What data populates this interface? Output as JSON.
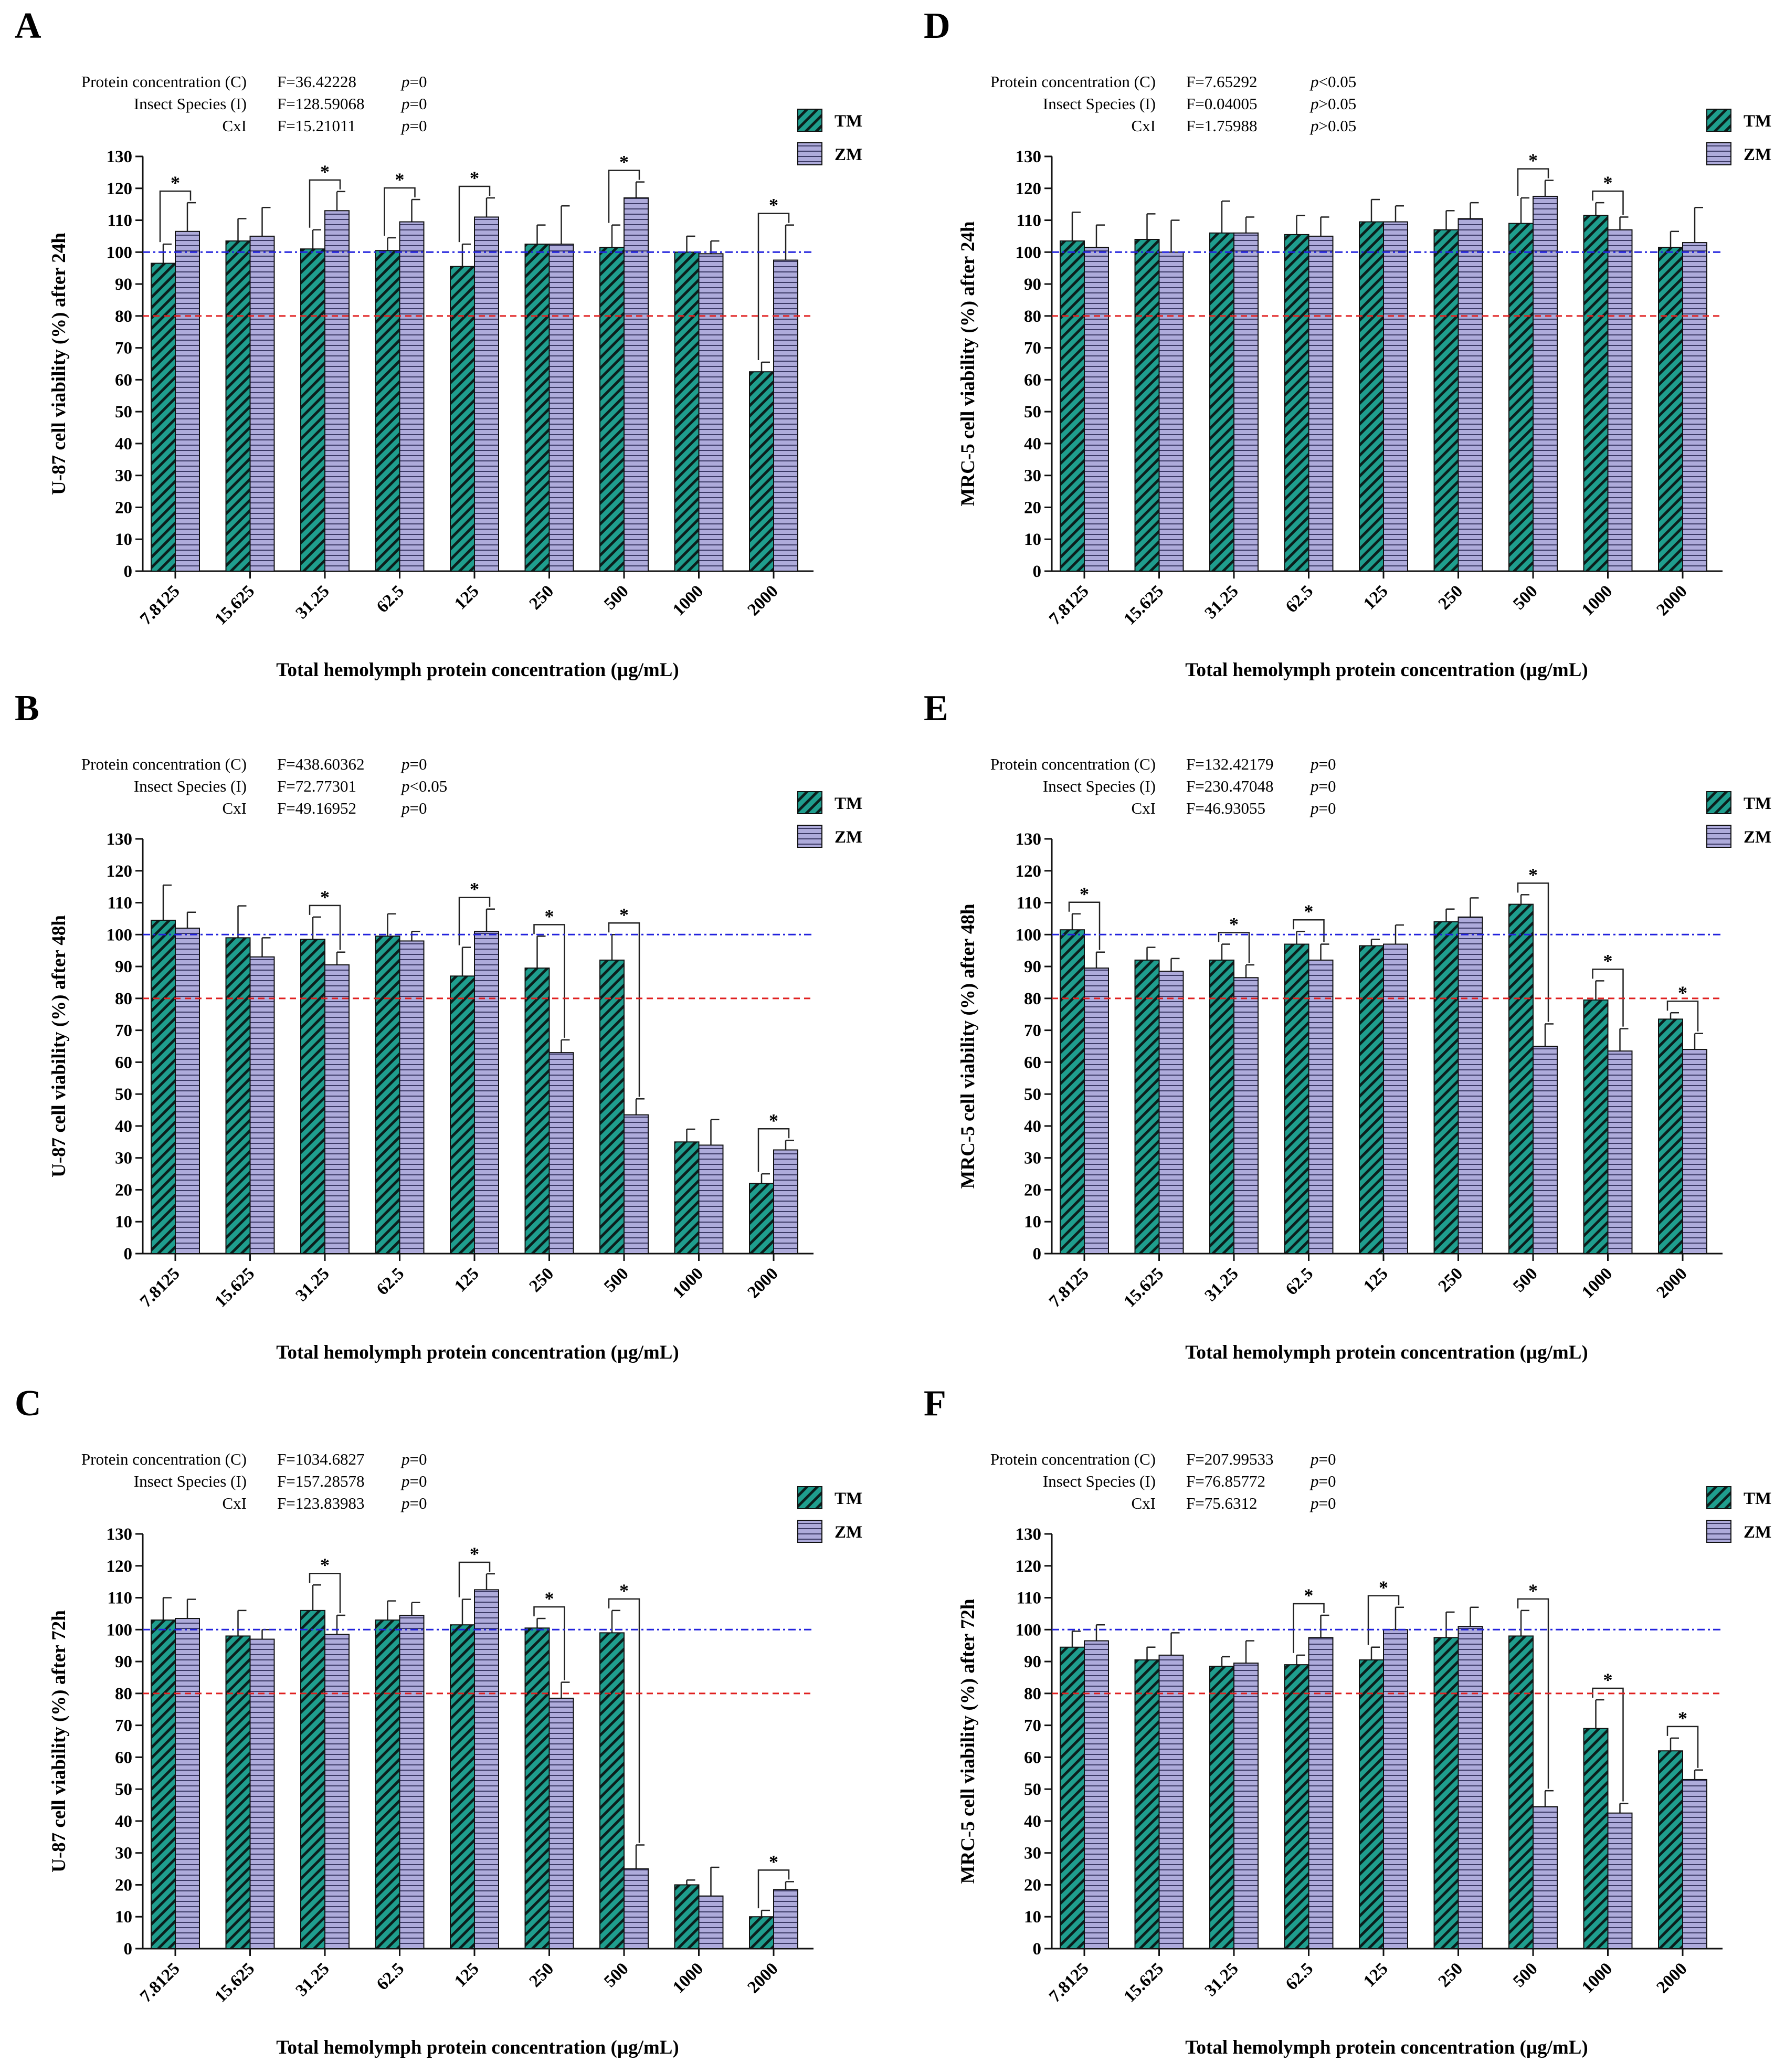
{
  "chart_data": [
    {
      "panel": "A",
      "type": "bar",
      "ylabel": "U-87 cell viability (%) after 24h",
      "xlabel": "Total hemolymph protein concentration (µg/mL)",
      "ylim": [
        0,
        130
      ],
      "yticks": [
        "0",
        "10",
        "20",
        "30",
        "40",
        "50",
        "60",
        "70",
        "80",
        "90",
        "100",
        "110",
        "120",
        "130"
      ],
      "categories": [
        "7.8125",
        "15.625",
        "31.25",
        "62.5",
        "125",
        "250",
        "500",
        "1000",
        "2000"
      ],
      "series": [
        {
          "name": "TM",
          "values": [
            96.5,
            103.5,
            101,
            100.5,
            95.5,
            102.5,
            101.5,
            100,
            62.5
          ],
          "errors": [
            6,
            7,
            6,
            4,
            7,
            6,
            7,
            5,
            3
          ]
        },
        {
          "name": "ZM",
          "values": [
            106.5,
            105,
            113,
            109.5,
            111,
            102.5,
            117,
            99.5,
            97.5
          ],
          "errors": [
            9,
            9,
            6,
            7,
            6,
            12,
            5,
            4,
            11
          ]
        }
      ],
      "significant": [
        0,
        2,
        3,
        4,
        6,
        8
      ],
      "ref_lines": [
        {
          "value": 100,
          "style": "dashdot",
          "color": "#2222dd"
        },
        {
          "value": 80,
          "style": "dash",
          "color": "#e02020"
        }
      ],
      "stats": [
        {
          "label": "Protein concentration (C)",
          "f": "F=36.42228",
          "p": "=0"
        },
        {
          "label": "Insect Species (I)",
          "f": "F=128.59068",
          "p": "=0"
        },
        {
          "label": "CxI",
          "f": "F=15.21011",
          "p": "=0"
        }
      ]
    },
    {
      "panel": "B",
      "type": "bar",
      "ylabel": "U-87 cell viability (%) after 48h",
      "xlabel": "Total hemolymph protein concentration (µg/mL)",
      "ylim": [
        0,
        130
      ],
      "yticks": [
        "0",
        "10",
        "20",
        "30",
        "40",
        "50",
        "60",
        "70",
        "80",
        "90",
        "100",
        "110",
        "120",
        "130"
      ],
      "categories": [
        "7.8125",
        "15.625",
        "31.25",
        "62.5",
        "125",
        "250",
        "500",
        "1000",
        "2000"
      ],
      "series": [
        {
          "name": "TM",
          "values": [
            104.5,
            99,
            98.5,
            99.5,
            87,
            89.5,
            92,
            35,
            22
          ],
          "errors": [
            11,
            10,
            7,
            7,
            9,
            10,
            8,
            4,
            3
          ]
        },
        {
          "name": "ZM",
          "values": [
            102,
            93,
            90.5,
            98,
            101,
            63,
            43.5,
            34,
            32.5
          ],
          "errors": [
            5,
            6,
            4,
            3,
            7,
            4,
            5,
            8,
            3
          ]
        }
      ],
      "significant": [
        2,
        4,
        5,
        6,
        8
      ],
      "ref_lines": [
        {
          "value": 100,
          "style": "dashdot",
          "color": "#2222dd"
        },
        {
          "value": 80,
          "style": "dash",
          "color": "#e02020"
        }
      ],
      "stats": [
        {
          "label": "Protein concentration (C)",
          "f": "F=438.60362",
          "p": "=0"
        },
        {
          "label": "Insect Species (I)",
          "f": "F=72.77301",
          "p": "<0.05"
        },
        {
          "label": "CxI",
          "f": "F=49.16952",
          "p": "=0"
        }
      ]
    },
    {
      "panel": "C",
      "type": "bar",
      "ylabel": "U-87 cell viability (%) after 72h",
      "xlabel": "Total hemolymph protein concentration (µg/mL)",
      "ylim": [
        0,
        130
      ],
      "yticks": [
        "0",
        "10",
        "20",
        "30",
        "40",
        "50",
        "60",
        "70",
        "80",
        "90",
        "100",
        "110",
        "120",
        "130"
      ],
      "categories": [
        "7.8125",
        "15.625",
        "31.25",
        "62.5",
        "125",
        "250",
        "500",
        "1000",
        "2000"
      ],
      "series": [
        {
          "name": "TM",
          "values": [
            103,
            98,
            106,
            103,
            101.5,
            100.5,
            99,
            20,
            10
          ],
          "errors": [
            7,
            8,
            8,
            6,
            8,
            3,
            7,
            1.5,
            2
          ]
        },
        {
          "name": "ZM",
          "values": [
            103.5,
            97,
            98.5,
            104.5,
            112.5,
            78.5,
            25,
            16.5,
            18.5
          ],
          "errors": [
            6,
            3,
            6,
            4,
            5,
            5,
            7.5,
            9,
            2.5
          ]
        }
      ],
      "significant": [
        2,
        4,
        5,
        6,
        8
      ],
      "ref_lines": [
        {
          "value": 100,
          "style": "dashdot",
          "color": "#2222dd"
        },
        {
          "value": 80,
          "style": "dash",
          "color": "#e02020"
        }
      ],
      "stats": [
        {
          "label": "Protein concentration (C)",
          "f": "F=1034.6827",
          "p": "=0"
        },
        {
          "label": "Insect Species (I)",
          "f": "F=157.28578",
          "p": "=0"
        },
        {
          "label": "CxI",
          "f": "F=123.83983",
          "p": "=0"
        }
      ]
    },
    {
      "panel": "D",
      "type": "bar",
      "ylabel": "MRC-5 cell viability (%) after 24h",
      "xlabel": "Total hemolymph protein concentration (µg/mL)",
      "ylim": [
        0,
        130
      ],
      "yticks": [
        "0",
        "10",
        "20",
        "30",
        "40",
        "50",
        "60",
        "70",
        "80",
        "90",
        "100",
        "110",
        "120",
        "130"
      ],
      "categories": [
        "7.8125",
        "15.625",
        "31.25",
        "62.5",
        "125",
        "250",
        "500",
        "1000",
        "2000"
      ],
      "series": [
        {
          "name": "TM",
          "values": [
            103.5,
            104,
            106,
            105.5,
            109.5,
            107,
            109,
            111.5,
            101.5
          ],
          "errors": [
            9,
            8,
            10,
            6,
            7,
            6,
            8,
            4,
            5
          ]
        },
        {
          "name": "ZM",
          "values": [
            101.5,
            100,
            106,
            105,
            109.5,
            110.5,
            117.5,
            107,
            103
          ],
          "errors": [
            7,
            10,
            5,
            6,
            5,
            5,
            5,
            4,
            11
          ]
        }
      ],
      "significant": [
        6,
        7
      ],
      "ref_lines": [
        {
          "value": 100,
          "style": "dashdot",
          "color": "#2222dd"
        },
        {
          "value": 80,
          "style": "dash",
          "color": "#e02020"
        }
      ],
      "stats": [
        {
          "label": "Protein concentration (C)",
          "f": "F=7.65292",
          "p": "<0.05"
        },
        {
          "label": "Insect Species (I)",
          "f": "F=0.04005",
          "p": ">0.05"
        },
        {
          "label": "CxI",
          "f": "F=1.75988",
          "p": ">0.05"
        }
      ]
    },
    {
      "panel": "E",
      "type": "bar",
      "ylabel": "MRC-5 cell viability (%) after 48h",
      "xlabel": "Total hemolymph protein concentration (µg/mL)",
      "ylim": [
        0,
        130
      ],
      "yticks": [
        "0",
        "10",
        "20",
        "30",
        "40",
        "50",
        "60",
        "70",
        "80",
        "90",
        "100",
        "110",
        "120",
        "130"
      ],
      "categories": [
        "7.8125",
        "15.625",
        "31.25",
        "62.5",
        "125",
        "250",
        "500",
        "1000",
        "2000"
      ],
      "series": [
        {
          "name": "TM",
          "values": [
            101.5,
            92,
            92,
            97,
            96.5,
            104,
            109.5,
            79.5,
            73.5
          ],
          "errors": [
            5,
            4,
            5,
            4,
            2,
            4,
            3,
            6,
            2
          ]
        },
        {
          "name": "ZM",
          "values": [
            89.5,
            88.5,
            86.5,
            92,
            97,
            105.5,
            65,
            63.5,
            64
          ],
          "errors": [
            5,
            4,
            4,
            5,
            6,
            6,
            7,
            7,
            5
          ]
        }
      ],
      "significant": [
        0,
        2,
        3,
        6,
        7,
        8
      ],
      "ref_lines": [
        {
          "value": 100,
          "style": "dashdot",
          "color": "#2222dd"
        },
        {
          "value": 80,
          "style": "dash",
          "color": "#e02020"
        }
      ],
      "stats": [
        {
          "label": "Protein concentration (C)",
          "f": "F=132.42179",
          "p": "=0"
        },
        {
          "label": "Insect Species (I)",
          "f": "F=230.47048",
          "p": "=0"
        },
        {
          "label": "CxI",
          "f": "F=46.93055",
          "p": "=0"
        }
      ]
    },
    {
      "panel": "F",
      "type": "bar",
      "ylabel": "MRC-5 cell viability (%) after 72h",
      "xlabel": "Total hemolymph protein concentration (µg/mL)",
      "ylim": [
        0,
        130
      ],
      "yticks": [
        "0",
        "10",
        "20",
        "30",
        "40",
        "50",
        "60",
        "70",
        "80",
        "90",
        "100",
        "110",
        "120",
        "130"
      ],
      "categories": [
        "7.8125",
        "15.625",
        "31.25",
        "62.5",
        "125",
        "250",
        "500",
        "1000",
        "2000"
      ],
      "series": [
        {
          "name": "TM",
          "values": [
            94.5,
            90.5,
            88.5,
            89,
            90.5,
            97.5,
            98,
            69,
            62
          ],
          "errors": [
            5,
            4,
            3,
            3,
            4,
            8,
            8,
            9,
            4
          ]
        },
        {
          "name": "ZM",
          "values": [
            96.5,
            92,
            89.5,
            97.5,
            100,
            101,
            44.5,
            42.5,
            53
          ],
          "errors": [
            5,
            7,
            7,
            7,
            7,
            6,
            5,
            3,
            3
          ]
        }
      ],
      "significant": [
        3,
        4,
        6,
        7,
        8
      ],
      "ref_lines": [
        {
          "value": 100,
          "style": "dashdot",
          "color": "#2222dd"
        },
        {
          "value": 80,
          "style": "dash",
          "color": "#e02020"
        }
      ],
      "stats": [
        {
          "label": "Protein concentration (C)",
          "f": "F=207.99533",
          "p": "=0"
        },
        {
          "label": "Insect Species (I)",
          "f": "F=76.85772",
          "p": "=0"
        },
        {
          "label": "CxI",
          "f": "F=75.6312",
          "p": "=0"
        }
      ]
    }
  ],
  "legend": [
    {
      "name": "TM",
      "pattern": "diagonal-stripes",
      "color": "#1f9e8e"
    },
    {
      "name": "ZM",
      "pattern": "horizontal-stripes",
      "color": "#a9a6d9"
    }
  ],
  "p_symbol": "p",
  "significance_mark": "*",
  "colors": {
    "tm": "#1f9e8e",
    "tm_stripe": "#0b1e1c",
    "zm": "#aeabdb",
    "zm_stripe": "#3c3a66",
    "blue_line": "#2222dd",
    "red_line": "#e02020"
  }
}
